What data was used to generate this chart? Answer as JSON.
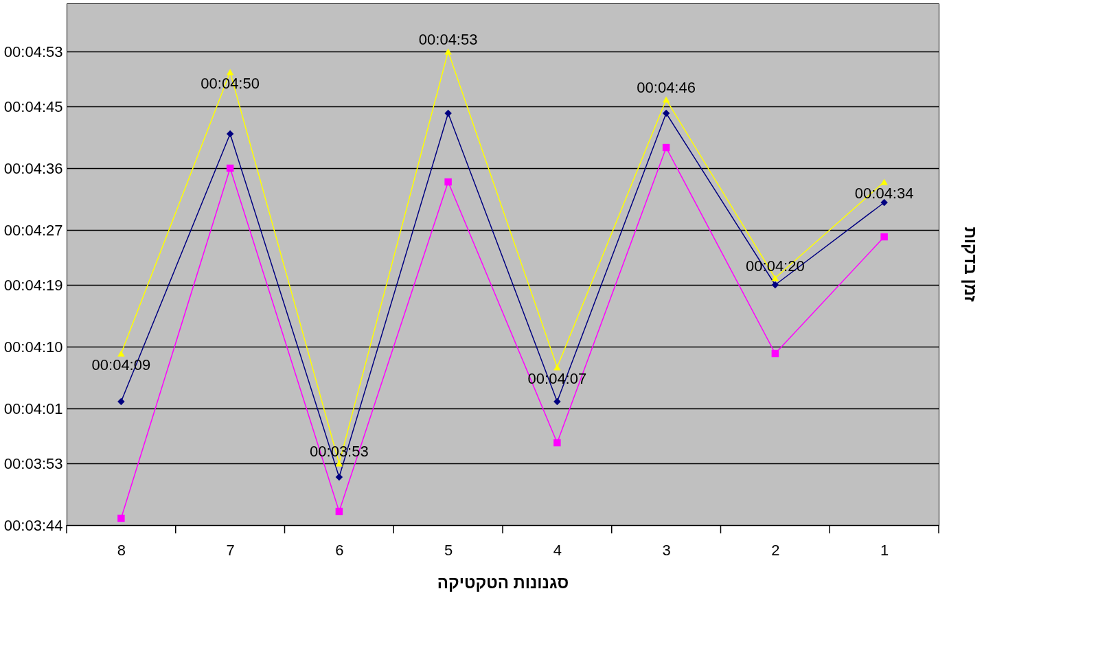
{
  "chart_data": {
    "type": "line",
    "xlabel": "סגנונות הטקטיקה",
    "ylabel": "זמן בדקות",
    "categories": [
      "8",
      "7",
      "6",
      "5",
      "4",
      "3",
      "2",
      "1"
    ],
    "ylim": [
      224,
      300
    ],
    "yticks": [
      {
        "value": 224,
        "label": "00:03:44"
      },
      {
        "value": 233,
        "label": "00:03:53"
      },
      {
        "value": 241,
        "label": "00:04:01"
      },
      {
        "value": 250,
        "label": "00:04:10"
      },
      {
        "value": 259,
        "label": "00:04:19"
      },
      {
        "value": 267,
        "label": "00:04:27"
      },
      {
        "value": 276,
        "label": "00:04:36"
      },
      {
        "value": 285,
        "label": "00:04:45"
      },
      {
        "value": 293,
        "label": "00:04:53"
      }
    ],
    "grid": "y",
    "legend": false,
    "series": [
      {
        "color": "#000080",
        "marker": "diamond",
        "values": [
          242,
          281,
          231,
          284,
          242,
          284,
          259,
          271
        ]
      },
      {
        "color": "#ff00ff",
        "marker": "square",
        "values": [
          225,
          276,
          226,
          274,
          236,
          279,
          249,
          266
        ]
      },
      {
        "color": "#ffff00",
        "marker": "triangle",
        "values": [
          249,
          290,
          233,
          293,
          247,
          286,
          260,
          274
        ],
        "value_labels": [
          "00:04:09",
          "00:04:50",
          "00:03:53",
          "00:04:53",
          "00:04:07",
          "00:04:46",
          "00:04:20",
          "00:04:34"
        ]
      }
    ]
  }
}
